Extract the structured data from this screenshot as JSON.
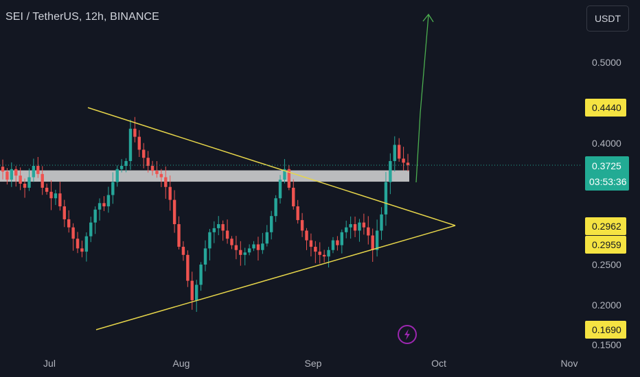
{
  "header": {
    "symbol_line": "SEI / TetherUS, 12h, BINANCE",
    "currency_button": "USDT"
  },
  "colors": {
    "background": "#131722",
    "up_candle": "#26a69a",
    "down_candle": "#ef5350",
    "trendline": "#e6d54a",
    "projection_arrow": "#4caf50",
    "current_price_bg": "#22ab94",
    "level_label_bg": "#f5e342",
    "zone_fill": "#d9d9d9"
  },
  "chart_data": {
    "type": "candlestick",
    "x_ticks": [
      "Jul",
      "Aug",
      "Sep",
      "Oct",
      "Nov"
    ],
    "y_ticks": [
      "0.5000",
      "0.4000",
      "0.2500",
      "0.2000",
      "0.1500"
    ],
    "price_labels": [
      {
        "value": 0.444,
        "text": "0.4440"
      },
      {
        "value": 0.2962,
        "text": "0.2962"
      },
      {
        "value": 0.2959,
        "text": "0.2959"
      },
      {
        "value": 0.169,
        "text": "0.1690"
      }
    ],
    "current_price": {
      "value": 0.3725,
      "text": "0.3725",
      "countdown": "03:53:36"
    },
    "resistance_zone": {
      "low": 0.3525,
      "high": 0.3665
    },
    "close_approx": [
      0.365,
      0.355,
      0.368,
      0.36,
      0.35,
      0.345,
      0.358,
      0.372,
      0.362,
      0.345,
      0.34,
      0.332,
      0.338,
      0.322,
      0.306,
      0.296,
      0.282,
      0.27,
      0.266,
      0.285,
      0.302,
      0.318,
      0.326,
      0.322,
      0.336,
      0.352,
      0.368,
      0.372,
      0.378,
      0.418,
      0.408,
      0.392,
      0.382,
      0.372,
      0.366,
      0.362,
      0.358,
      0.346,
      0.33,
      0.3,
      0.272,
      0.262,
      0.23,
      0.206,
      0.225,
      0.25,
      0.27,
      0.29,
      0.295,
      0.3,
      0.292,
      0.282,
      0.274,
      0.268,
      0.262,
      0.265,
      0.27,
      0.275,
      0.268,
      0.276,
      0.29,
      0.31,
      0.332,
      0.355,
      0.368,
      0.345,
      0.322,
      0.305,
      0.292,
      0.28,
      0.272,
      0.266,
      0.262,
      0.26,
      0.268,
      0.28,
      0.274,
      0.29,
      0.296,
      0.3,
      0.292,
      0.302,
      0.296,
      0.286,
      0.268,
      0.292,
      0.312,
      0.352,
      0.378,
      0.398,
      0.381,
      0.376,
      0.373
    ],
    "annotations": {
      "descending_trendline": "upper boundary of symmetrical triangle",
      "ascending_trendline": "lower boundary of symmetrical triangle",
      "projection": "upward breakout arrow"
    }
  },
  "footer": {
    "lightning_icon": "lightning-icon"
  }
}
